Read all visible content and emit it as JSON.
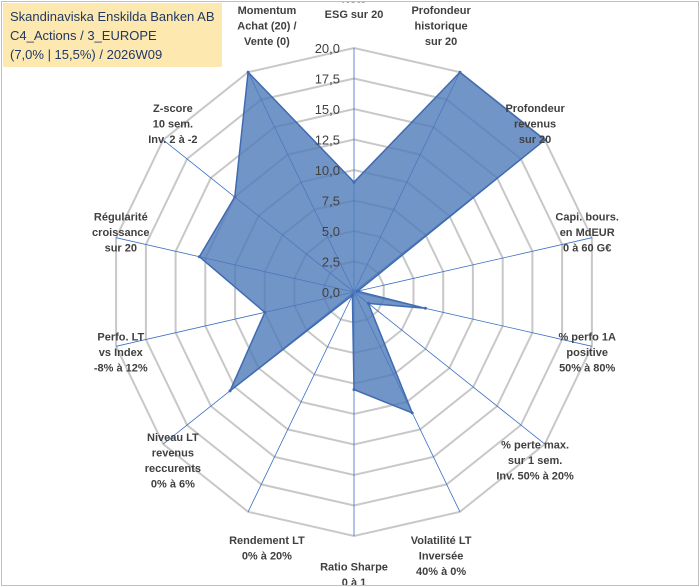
{
  "title_box": {
    "line1": "Skandinaviska Enskilda Banken AB",
    "line2": "C4_Actions / 3_EUROPE",
    "line3": "(7,0% | 15,5%) / 2026W09"
  },
  "chart_data": {
    "type": "radar",
    "rmin": 0,
    "rmax": 20,
    "ticks": [
      "0,0",
      "2,5",
      "5,0",
      "7,5",
      "10,0",
      "12,5",
      "15,0",
      "17,5",
      "20,0"
    ],
    "axes": [
      {
        "label": [
          "Note",
          "ESG sur 20"
        ],
        "value": 9
      },
      {
        "label": [
          "Profondeur",
          "historique",
          "sur 20"
        ],
        "value": 20
      },
      {
        "label": [
          "Profondeur",
          "revenus",
          "sur 20"
        ],
        "value": 20
      },
      {
        "label": [
          "Capi. bours.",
          "en MdEUR",
          "0 à 60 G€"
        ],
        "value": 0.3
      },
      {
        "label": [
          "% perfo 1A",
          "positive",
          "50% à 80%"
        ],
        "value": 6
      },
      {
        "label": [
          "% perte max.",
          "sur 1 sem.",
          "Inv. 50% à 20%"
        ],
        "value": 1.5
      },
      {
        "label": [
          "Volatilité LT",
          "Inversée",
          "40% à 0%"
        ],
        "value": 11
      },
      {
        "label": [
          "Ratio Sharpe",
          "0 à 1"
        ],
        "value": 8
      },
      {
        "label": [
          "Rendement LT",
          "0% à 20%"
        ],
        "value": 0.3
      },
      {
        "label": [
          "Niveau LT",
          "revenus",
          "reccurents",
          "0% à 6%"
        ],
        "value": 13
      },
      {
        "label": [
          "Perfo. LT",
          "vs Index",
          "-8% à 12%"
        ],
        "value": 7.5
      },
      {
        "label": [
          "Régularité",
          "croissance",
          "sur 20"
        ],
        "value": 13
      },
      {
        "label": [
          "Z-score",
          "10 sem.",
          "Inv. 2 à -2"
        ],
        "value": 12.5
      },
      {
        "label": [
          "Momentum",
          "Achat (20) /",
          "Vente (0)"
        ],
        "value": 20
      }
    ],
    "fill_color": "#4f7bba",
    "stroke_color": "#3f6bb0",
    "grid_color": "#c8c8c8",
    "spoke_color": "#3a6fc4"
  }
}
